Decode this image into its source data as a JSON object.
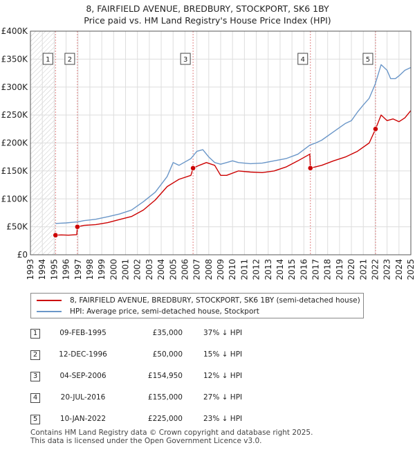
{
  "header": {
    "title_line1": "8, FAIRFIELD AVENUE, BREDBURY, STOCKPORT, SK6 1BY",
    "title_line2": "Price paid vs. HM Land Registry's House Price Index (HPI)"
  },
  "legend": {
    "property_label": "8, FAIRFIELD AVENUE, BREDBURY, STOCKPORT, SK6 1BY (semi-detached house)",
    "hpi_label": "HPI: Average price, semi-detached house, Stockport"
  },
  "transactions": [
    {
      "num": "1",
      "date": "09-FEB-1995",
      "price": "£35,000",
      "hpi": "37% ↓ HPI"
    },
    {
      "num": "2",
      "date": "12-DEC-1996",
      "price": "£50,000",
      "hpi": "15% ↓ HPI"
    },
    {
      "num": "3",
      "date": "04-SEP-2006",
      "price": "£154,950",
      "hpi": "12% ↓ HPI"
    },
    {
      "num": "4",
      "date": "20-JUL-2016",
      "price": "£155,000",
      "hpi": "27% ↓ HPI"
    },
    {
      "num": "5",
      "date": "10-JAN-2022",
      "price": "£225,000",
      "hpi": "23% ↓ HPI"
    }
  ],
  "footer": {
    "line1": "Contains HM Land Registry data © Crown copyright and database right 2025.",
    "line2": "This data is licensed under the Open Government Licence v3.0."
  },
  "chart_data": {
    "type": "line",
    "title": "8, FAIRFIELD AVENUE, BREDBURY, STOCKPORT, SK6 1BY",
    "subtitle": "Price paid vs. HM Land Registry's House Price Index (HPI)",
    "xlabel": "",
    "ylabel": "",
    "xlim": [
      1993,
      2025
    ],
    "ylim": [
      0,
      400000
    ],
    "grid": true,
    "x_ticks": [
      "1993",
      "1994",
      "1995",
      "1996",
      "1997",
      "1998",
      "1999",
      "2000",
      "2001",
      "2002",
      "2003",
      "2004",
      "2005",
      "2006",
      "2007",
      "2008",
      "2009",
      "2010",
      "2011",
      "2012",
      "2013",
      "2014",
      "2015",
      "2016",
      "2017",
      "2018",
      "2019",
      "2020",
      "2021",
      "2022",
      "2023",
      "2024",
      "2025"
    ],
    "y_ticks": [
      {
        "value": 0,
        "label": "£0"
      },
      {
        "value": 50000,
        "label": "£50K"
      },
      {
        "value": 100000,
        "label": "£100K"
      },
      {
        "value": 150000,
        "label": "£150K"
      },
      {
        "value": 200000,
        "label": "£200K"
      },
      {
        "value": 250000,
        "label": "£250K"
      },
      {
        "value": 300000,
        "label": "£300K"
      },
      {
        "value": 350000,
        "label": "£350K"
      },
      {
        "value": 400000,
        "label": "£400K"
      }
    ],
    "hatched_ranges": [
      [
        1993,
        1995.1
      ],
      [
        2025,
        2025.3
      ]
    ],
    "colors": {
      "property": "#cc0000",
      "hpi": "#6a96c8",
      "vline": "#e08080",
      "grid": "#dddddd"
    },
    "series": [
      {
        "name": "8, FAIRFIELD AVENUE, BREDBURY, STOCKPORT, SK6 1BY (semi-detached house)",
        "color": "#cc0000",
        "x": [
          1995.1,
          1995.6,
          1996.2,
          1996.9,
          1996.95,
          1997.5,
          1998.5,
          1999.5,
          2000.5,
          2001.5,
          2002.5,
          2003.5,
          2004.5,
          2005.5,
          2006.5,
          2006.68,
          2007.2,
          2007.8,
          2008.5,
          2009.0,
          2009.5,
          2010.5,
          2011.5,
          2012.5,
          2013.5,
          2014.5,
          2015.5,
          2016.5,
          2016.55,
          2017.5,
          2018.5,
          2019.5,
          2020.5,
          2021.5,
          2022.03,
          2022.5,
          2023.0,
          2023.5,
          2024.0,
          2024.5,
          2025.0
        ],
        "values": [
          35000,
          35500,
          35000,
          36000,
          50000,
          52500,
          54000,
          57500,
          63000,
          68500,
          80000,
          98000,
          122000,
          135000,
          142000,
          154950,
          160000,
          165000,
          160000,
          142000,
          142000,
          150000,
          148000,
          147000,
          150000,
          157000,
          168000,
          180000,
          155000,
          160000,
          168000,
          175000,
          185000,
          200000,
          225000,
          250000,
          240000,
          243000,
          238000,
          245000,
          258000
        ]
      },
      {
        "name": "HPI: Average price, semi-detached house, Stockport",
        "color": "#6a96c8",
        "x": [
          1995.1,
          1995.5,
          1996.0,
          1996.5,
          1997.0,
          1997.5,
          1998.5,
          1999.5,
          2000.5,
          2001.5,
          2002.5,
          2003.5,
          2004.5,
          2005.0,
          2005.5,
          2006.5,
          2007.0,
          2007.5,
          2008.0,
          2008.5,
          2009.0,
          2009.5,
          2010.0,
          2010.5,
          2011.5,
          2012.5,
          2013.5,
          2014.5,
          2015.5,
          2016.5,
          2017.0,
          2017.5,
          2018.5,
          2019.5,
          2020.0,
          2020.5,
          2021.0,
          2021.5,
          2022.0,
          2022.5,
          2023.0,
          2023.3,
          2023.7,
          2024.0,
          2024.5,
          2025.0
        ],
        "values": [
          56000,
          56500,
          57000,
          58000,
          59000,
          61000,
          63500,
          68000,
          73000,
          80000,
          95000,
          112000,
          140000,
          165000,
          160000,
          172000,
          185000,
          188000,
          175000,
          165000,
          162000,
          165000,
          168000,
          165000,
          163000,
          164000,
          168000,
          172000,
          180000,
          196000,
          200000,
          205000,
          220000,
          235000,
          240000,
          255000,
          268000,
          280000,
          305000,
          340000,
          330000,
          315000,
          315000,
          320000,
          330000,
          335000
        ]
      }
    ],
    "markers": [
      {
        "label": "1",
        "x": 1995.11,
        "y": 35000
      },
      {
        "label": "2",
        "x": 1996.95,
        "y": 50000
      },
      {
        "label": "3",
        "x": 2006.68,
        "y": 154950
      },
      {
        "label": "4",
        "x": 2016.55,
        "y": 155000
      },
      {
        "label": "5",
        "x": 2022.03,
        "y": 225000
      }
    ]
  }
}
